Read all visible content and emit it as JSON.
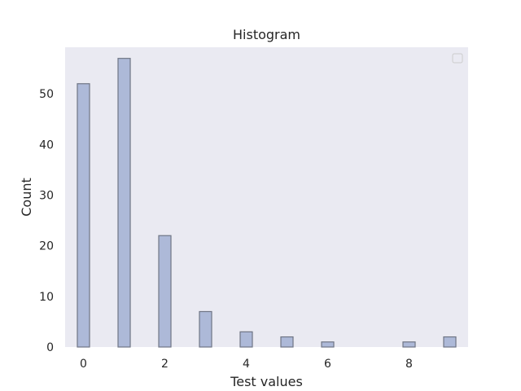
{
  "chart_data": {
    "type": "bar",
    "title": "Histogram",
    "xlabel": "Test values",
    "ylabel": "Count",
    "x": [
      0,
      1,
      2,
      3,
      4,
      5,
      6,
      8,
      9
    ],
    "values": [
      52,
      57,
      22,
      7,
      3,
      2,
      1,
      1,
      2
    ],
    "xlim": [
      -0.45,
      9.45
    ],
    "ylim": [
      0,
      59.2
    ],
    "xticks": [
      0,
      2,
      4,
      6,
      8
    ],
    "yticks": [
      0,
      10,
      20,
      30,
      40,
      50
    ],
    "grid": false,
    "legend_placement": "top-right",
    "colors": {
      "bar_fill": "#adb9d8",
      "bar_edge": "#6f7585",
      "plot_bg": "#eaeaf2"
    }
  }
}
